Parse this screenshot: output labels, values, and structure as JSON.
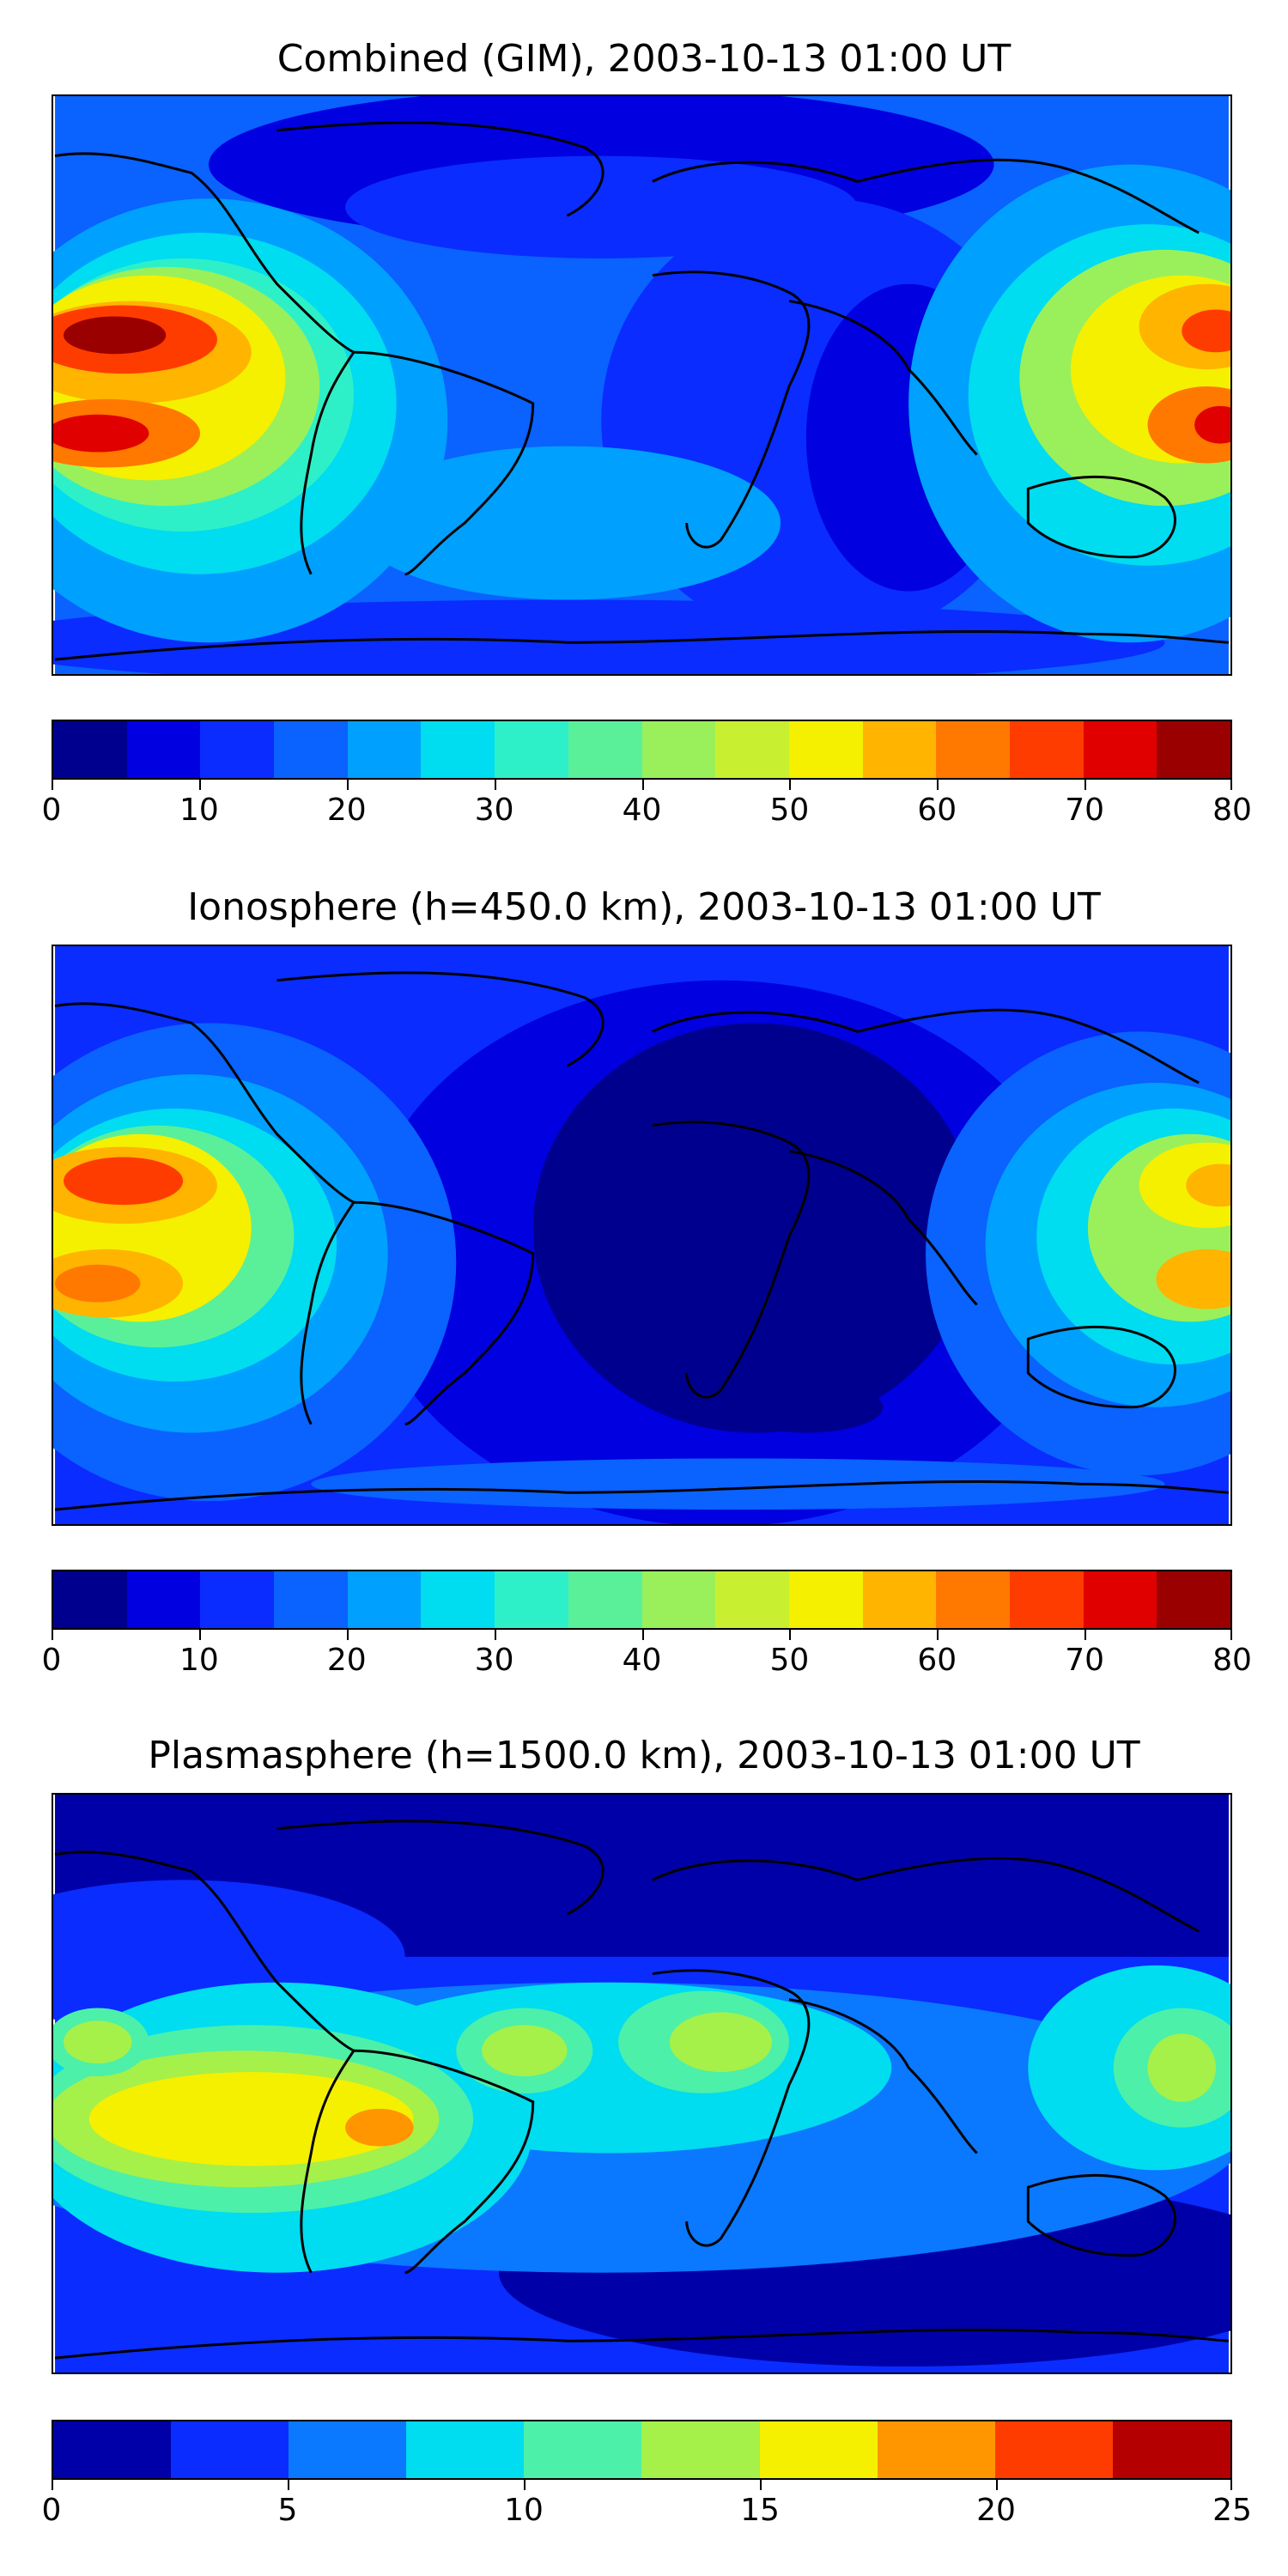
{
  "panels": [
    {
      "title": "Combined (GIM), 2003-10-13 01:00 UT",
      "colorbar": {
        "ticks": [
          "0",
          "10",
          "20",
          "30",
          "40",
          "50",
          "60",
          "70",
          "80"
        ],
        "bins": 16,
        "min": 0,
        "max": 80,
        "colors": [
          "#00008f",
          "#0000e0",
          "#0a2cff",
          "#0a62ff",
          "#00a0ff",
          "#00dcf0",
          "#2ef0c8",
          "#5af09a",
          "#9af05a",
          "#c8f030",
          "#f5f000",
          "#ffb400",
          "#ff7800",
          "#ff3c00",
          "#e00000",
          "#9a0000"
        ]
      },
      "field": "combined"
    },
    {
      "title": "Ionosphere  (h=450.0 km), 2003-10-13 01:00 UT",
      "colorbar": {
        "ticks": [
          "0",
          "10",
          "20",
          "30",
          "40",
          "50",
          "60",
          "70",
          "80"
        ],
        "bins": 16,
        "min": 0,
        "max": 80,
        "colors": [
          "#00008f",
          "#0000e0",
          "#0a2cff",
          "#0a62ff",
          "#00a0ff",
          "#00dcf0",
          "#2ef0c8",
          "#5af09a",
          "#9af05a",
          "#c8f030",
          "#f5f000",
          "#ffb400",
          "#ff7800",
          "#ff3c00",
          "#e00000",
          "#9a0000"
        ]
      },
      "field": "ionosphere"
    },
    {
      "title": "Plasmasphere (h=1500.0 km), 2003-10-13 01:00 UT",
      "colorbar": {
        "ticks": [
          "0",
          "5",
          "10",
          "15",
          "20",
          "25"
        ],
        "bins": 10,
        "min": 0,
        "max": 25,
        "colors": [
          "#0000a8",
          "#0a2cff",
          "#0a78ff",
          "#00dcf0",
          "#4cf0a8",
          "#a6f04a",
          "#f5f000",
          "#ff9600",
          "#ff3c00",
          "#b40000"
        ]
      },
      "field": "plasmasphere"
    }
  ]
}
